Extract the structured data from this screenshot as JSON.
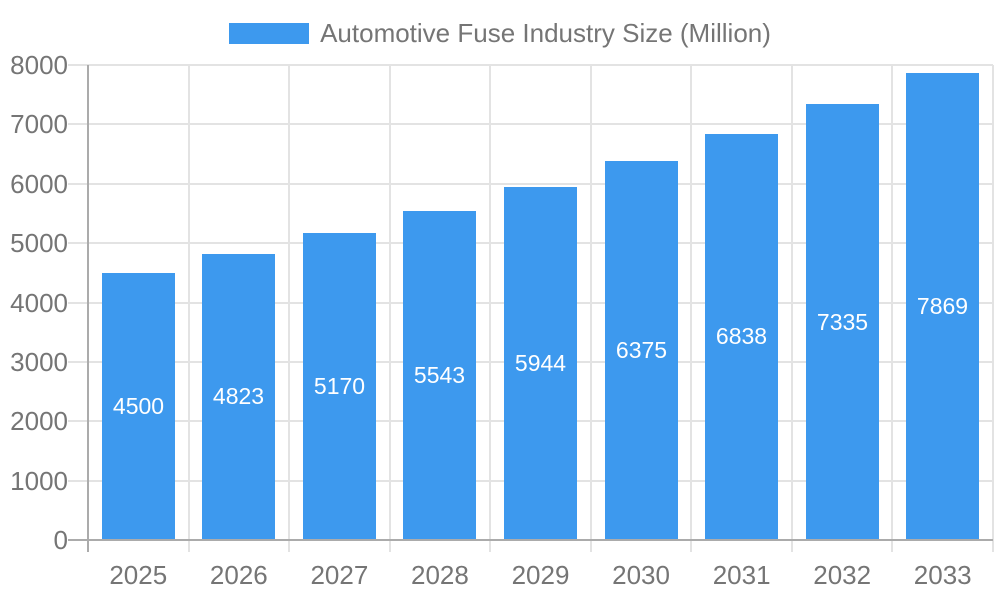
{
  "chart_data": {
    "type": "bar",
    "title": "Automotive Fuse Industry Size (Million)",
    "legend": {
      "position": "top",
      "entries": [
        "Automotive Fuse Industry Size (Million)"
      ]
    },
    "categories": [
      "2025",
      "2026",
      "2027",
      "2028",
      "2029",
      "2030",
      "2031",
      "2032",
      "2033"
    ],
    "series": [
      {
        "name": "Automotive Fuse Industry Size (Million)",
        "values": [
          4500,
          4823,
          5170,
          5543,
          5944,
          6375,
          6838,
          7335,
          7869
        ]
      }
    ],
    "value_labels": [
      "4500",
      "4823",
      "5170",
      "5543",
      "5944",
      "6375",
      "6838",
      "7335",
      "7869"
    ],
    "xlabel": "",
    "ylabel": "",
    "ylim": [
      0,
      8000
    ],
    "ytick_step": 1000,
    "yticks": [
      "0",
      "1000",
      "2000",
      "3000",
      "4000",
      "5000",
      "6000",
      "7000",
      "8000"
    ],
    "grid": true,
    "colors": {
      "bar": "#3D99EE",
      "value_label": "#FFFFFF",
      "axis_text": "#757575",
      "grid_line": "#E3E3E3",
      "axis_line": "#ABABAB",
      "background": "#FFFFFF"
    }
  }
}
